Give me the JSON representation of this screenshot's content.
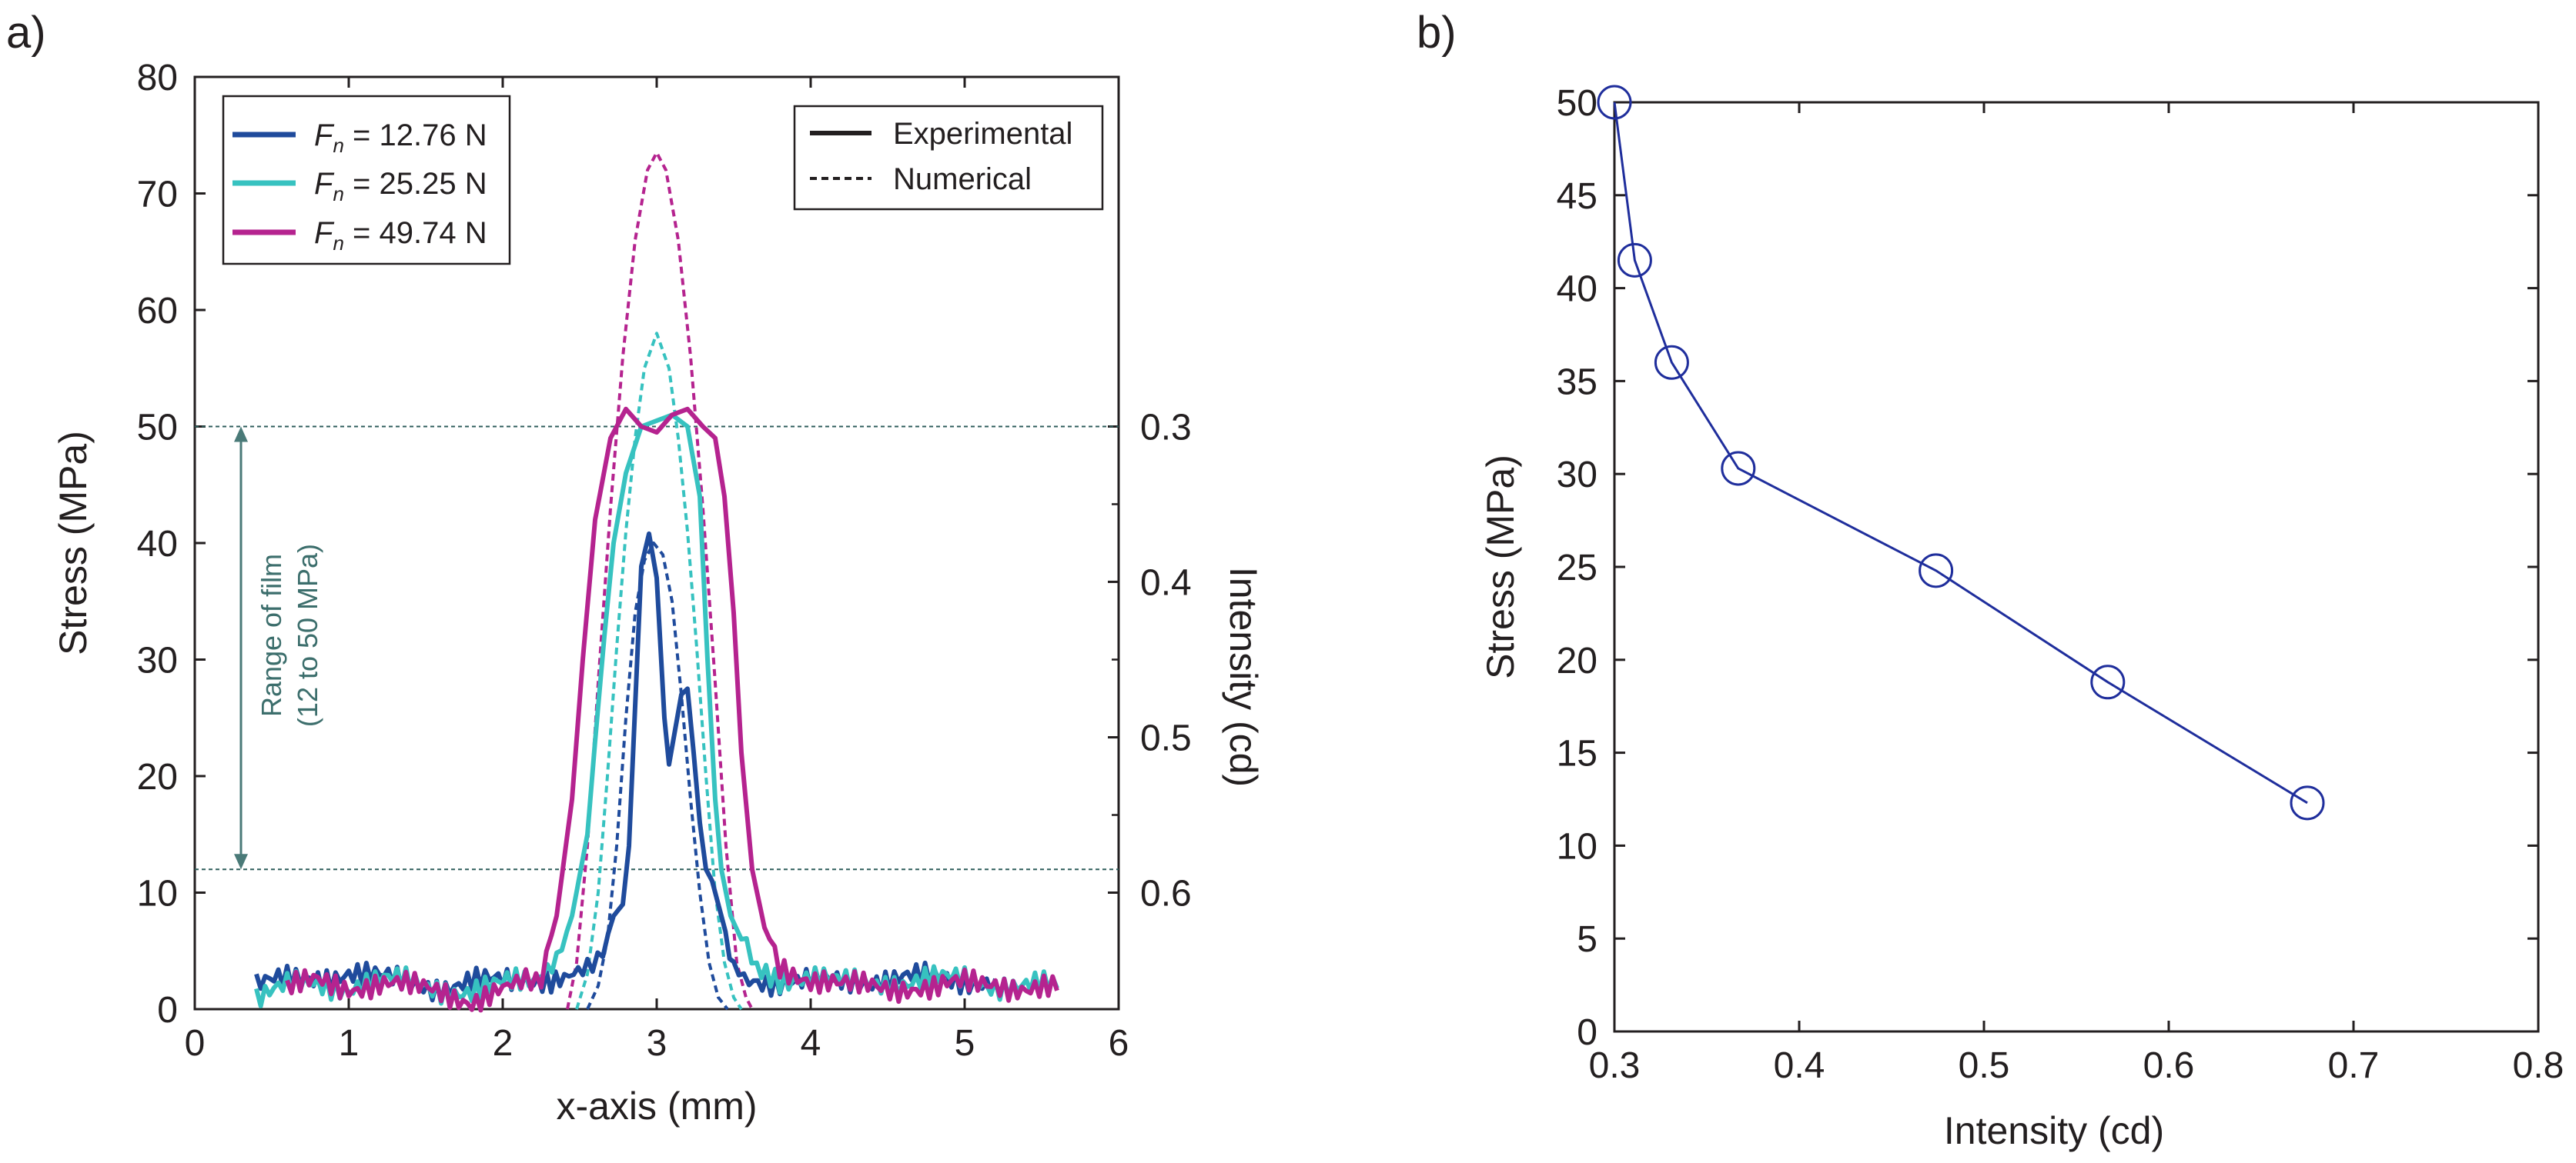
{
  "colors": {
    "fn_low": "#1f4b9c",
    "fn_mid": "#37c2c0",
    "fn_high": "#b5238f",
    "guide": "#2f5e5c",
    "annotation": "#3c6e6c",
    "panel_b_line": "#1f2e9c"
  },
  "chart_data": [
    {
      "panel": "a)",
      "type": "line",
      "xlabel": "x-axis (mm)",
      "ylabel": "Stress (MPa)",
      "y2label": "Intensity (cd)",
      "xlim": [
        0,
        6
      ],
      "ylim": [
        0,
        80
      ],
      "xticks": [
        "0",
        "1",
        "2",
        "3",
        "4",
        "5",
        "6"
      ],
      "yticks": [
        "0",
        "10",
        "20",
        "30",
        "40",
        "50",
        "60",
        "70",
        "80"
      ],
      "y2ticks": [
        {
          "label": "0.3",
          "stress": 50
        },
        {
          "label": "0.4",
          "stress": 36.67
        },
        {
          "label": "0.5",
          "stress": 23.33
        },
        {
          "label": "0.6",
          "stress": 10
        }
      ],
      "legend_series": [
        {
          "prefix": "F",
          "sub": "n",
          "value": " = 12.76 N",
          "color_key": "fn_low"
        },
        {
          "prefix": "F",
          "sub": "n",
          "value": " = 25.25 N",
          "color_key": "fn_mid"
        },
        {
          "prefix": "F",
          "sub": "n",
          "value": " = 49.74 N",
          "color_key": "fn_high"
        }
      ],
      "legend_styles": [
        "Experimental",
        "Numerical"
      ],
      "legend_position": [
        "top-left",
        "top-right"
      ],
      "guide_lines": [
        50,
        12
      ],
      "annotation": {
        "line1": "Range of film",
        "line2": "(12 to 50 MPa)",
        "from": 12,
        "to": 50
      },
      "series": [
        {
          "name": "Fn = 12.76 N",
          "style": "experimental",
          "color_key": "fn_low",
          "x": [
            0.4,
            0.6,
            0.8,
            1.0,
            1.2,
            1.4,
            1.6,
            1.8,
            2.0,
            2.2,
            2.4,
            2.55,
            2.65,
            2.72,
            2.78,
            2.82,
            2.86,
            2.9,
            2.95,
            3.0,
            3.05,
            3.08,
            3.12,
            3.16,
            3.2,
            3.24,
            3.28,
            3.32,
            3.36,
            3.42,
            3.5,
            3.6,
            3.8,
            4.0,
            4.2,
            4.4,
            4.6,
            4.8,
            5.0,
            5.2
          ],
          "y": [
            2.0,
            2.4,
            2.8,
            3.2,
            2.6,
            2.2,
            2.0,
            2.4,
            2.2,
            2.6,
            3.0,
            4.0,
            5.0,
            8.0,
            9.0,
            14.0,
            26.0,
            38.0,
            40.8,
            37.0,
            25.0,
            21.0,
            24.0,
            27.0,
            27.5,
            22.0,
            16.0,
            12.0,
            11.0,
            8.0,
            4.0,
            2.8,
            2.4,
            2.2,
            2.4,
            2.6,
            2.8,
            2.5,
            2.4,
            2.6
          ]
        },
        {
          "name": "Fn = 25.25 N",
          "style": "experimental",
          "color_key": "fn_mid",
          "x": [
            0.4,
            0.6,
            0.8,
            1.0,
            1.2,
            1.4,
            1.6,
            1.8,
            2.0,
            2.2,
            2.35,
            2.45,
            2.55,
            2.6,
            2.66,
            2.72,
            2.8,
            2.9,
            3.0,
            3.1,
            3.2,
            3.28,
            3.33,
            3.38,
            3.42,
            3.48,
            3.55,
            3.65,
            3.8,
            4.0,
            4.2,
            4.4,
            4.6,
            4.8,
            5.0,
            5.2,
            5.4,
            5.6
          ],
          "y": [
            1.0,
            1.8,
            2.2,
            2.0,
            2.4,
            2.2,
            1.8,
            1.6,
            2.0,
            2.4,
            4.0,
            8.0,
            15.0,
            23.0,
            32.0,
            40.0,
            46.0,
            50.0,
            50.5,
            51.0,
            50.0,
            44.0,
            30.0,
            18.0,
            12.0,
            8.0,
            6.0,
            4.0,
            2.8,
            2.4,
            2.2,
            2.6,
            2.2,
            2.4,
            2.6,
            2.2,
            2.0,
            1.8
          ]
        },
        {
          "name": "Fn = 49.74 N",
          "style": "experimental",
          "color_key": "fn_high",
          "x": [
            0.6,
            0.8,
            1.0,
            1.2,
            1.4,
            1.6,
            1.8,
            2.0,
            2.15,
            2.25,
            2.35,
            2.45,
            2.52,
            2.6,
            2.7,
            2.8,
            2.9,
            3.0,
            3.1,
            3.2,
            3.3,
            3.38,
            3.44,
            3.5,
            3.55,
            3.62,
            3.7,
            3.8,
            4.0,
            4.2,
            4.4,
            4.6,
            4.8,
            5.0,
            5.2,
            5.4,
            5.6
          ],
          "y": [
            1.6,
            2.4,
            2.0,
            2.2,
            1.8,
            1.6,
            0.8,
            1.6,
            2.4,
            3.0,
            8.0,
            18.0,
            30.0,
            42.0,
            49.0,
            51.5,
            50.0,
            49.5,
            51.0,
            51.5,
            50.0,
            49.0,
            44.0,
            34.0,
            22.0,
            12.0,
            7.0,
            4.0,
            2.4,
            1.8,
            2.2,
            2.0,
            1.6,
            2.2,
            2.4,
            1.8,
            1.6
          ]
        },
        {
          "name": "Fn = 12.76 N",
          "style": "numerical",
          "color_key": "fn_low",
          "x": [
            2.55,
            2.62,
            2.68,
            2.74,
            2.8,
            2.86,
            2.92,
            2.98,
            3.04,
            3.1,
            3.16,
            3.22,
            3.28,
            3.34,
            3.4,
            3.46
          ],
          "y": [
            0.0,
            2.0,
            6.0,
            14.0,
            25.0,
            34.0,
            38.5,
            40.0,
            39.0,
            35.0,
            27.0,
            18.0,
            10.0,
            4.0,
            1.0,
            0.0
          ]
        },
        {
          "name": "Fn = 25.25 N",
          "style": "numerical",
          "color_key": "fn_mid",
          "x": [
            2.48,
            2.55,
            2.62,
            2.68,
            2.74,
            2.8,
            2.86,
            2.92,
            3.0,
            3.08,
            3.14,
            3.2,
            3.26,
            3.32,
            3.38,
            3.44,
            3.5,
            3.55
          ],
          "y": [
            0.0,
            3.0,
            10.0,
            20.0,
            31.0,
            41.0,
            49.0,
            55.0,
            58.0,
            55.0,
            49.0,
            41.0,
            31.0,
            20.0,
            10.0,
            4.0,
            1.0,
            0.0
          ]
        },
        {
          "name": "Fn = 49.74 N",
          "style": "numerical",
          "color_key": "fn_high",
          "x": [
            2.42,
            2.48,
            2.55,
            2.62,
            2.7,
            2.78,
            2.86,
            2.94,
            3.0,
            3.06,
            3.14,
            3.22,
            3.3,
            3.38,
            3.45,
            3.52,
            3.58,
            3.62
          ],
          "y": [
            0.0,
            4.0,
            14.0,
            28.0,
            43.0,
            56.0,
            66.0,
            72.0,
            73.5,
            72.0,
            66.0,
            56.0,
            43.0,
            28.0,
            14.0,
            4.0,
            1.0,
            0.0
          ]
        }
      ]
    },
    {
      "panel": "b)",
      "type": "line",
      "xlabel": "Intensity (cd)",
      "ylabel": "Stress (MPa)",
      "xlim": [
        0.3,
        0.8
      ],
      "ylim": [
        0,
        50
      ],
      "xticks": [
        "0.3",
        "0.4",
        "0.5",
        "0.6",
        "0.7",
        "0.8"
      ],
      "yticks": [
        "0",
        "5",
        "10",
        "15",
        "20",
        "25",
        "30",
        "35",
        "40",
        "45",
        "50"
      ],
      "series": [
        {
          "x": [
            0.3,
            0.311,
            0.331,
            0.367,
            0.474,
            0.567,
            0.675
          ],
          "y": [
            50.0,
            41.5,
            36.0,
            30.3,
            24.8,
            18.8,
            12.3
          ]
        }
      ]
    }
  ]
}
